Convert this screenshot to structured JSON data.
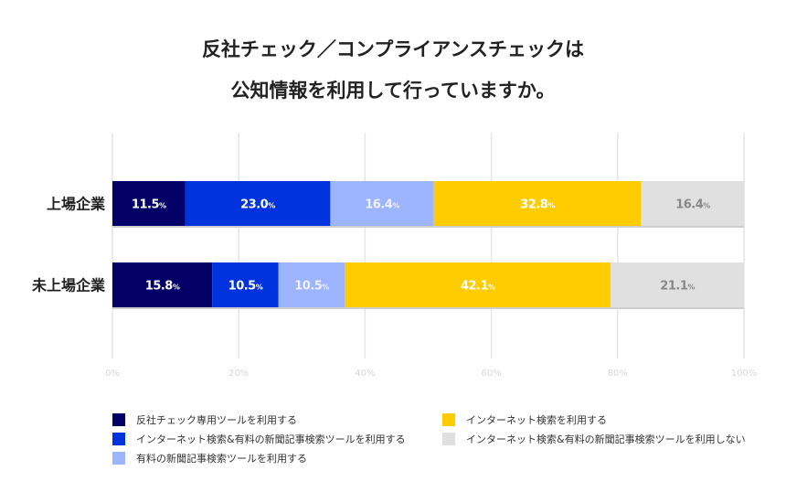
{
  "title_lines": [
    "反社チェック／コンプライアンスチェックは",
    "公知情報を利用して行っていますか。"
  ],
  "chart_data": {
    "type": "bar",
    "orientation": "horizontal",
    "stacked": true,
    "categories": [
      "上場企業",
      "未上場企業"
    ],
    "series": [
      {
        "name": "反社チェック専用ツールを利用する",
        "color": "#020066",
        "label_color": "#ffffff",
        "values": [
          11.5,
          15.8
        ]
      },
      {
        "name": "インターネット検索&有料の新聞記事検索ツールを利用する",
        "color": "#0033dd",
        "label_color": "#ffffff",
        "values": [
          23.0,
          10.5
        ]
      },
      {
        "name": "有料の新聞記事検索ツールを利用する",
        "color": "#9db5ff",
        "label_color": "#eef2ff",
        "values": [
          16.4,
          10.5
        ]
      },
      {
        "name": "インターネット検索を利用する",
        "color": "#ffcc00",
        "label_color": "#ffffff",
        "values": [
          32.8,
          42.1
        ]
      },
      {
        "name": "インターネット検索&有料の新聞記事検索ツールを利用しない",
        "color": "#e0e0e0",
        "label_color": "#888888",
        "values": [
          16.4,
          21.1
        ]
      }
    ],
    "xticks": [
      "0%",
      "20%",
      "40%",
      "60%",
      "80%",
      "100%"
    ],
    "xlim": [
      0,
      100
    ],
    "grid": true,
    "legend_position": "bottom"
  }
}
